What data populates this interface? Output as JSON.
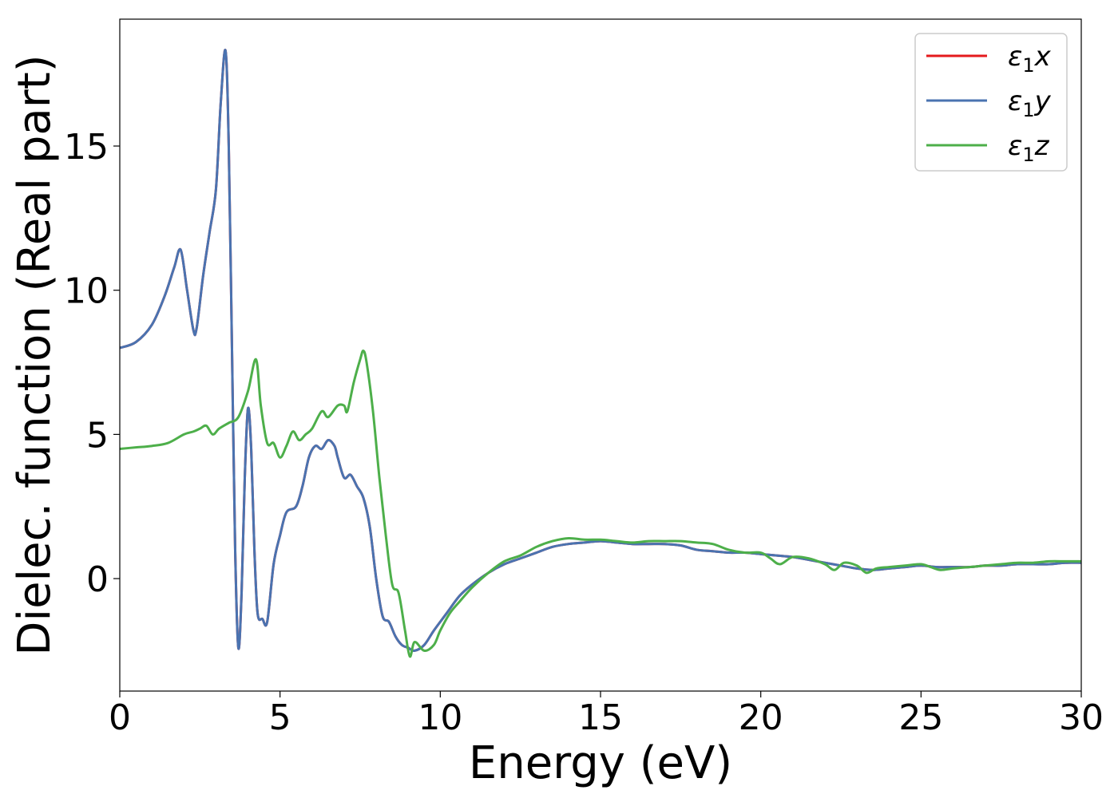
{
  "chart_data": {
    "type": "line",
    "xlabel": "Energy (eV)",
    "ylabel": "Dielec. function (Real part)",
    "xlim": [
      0,
      30
    ],
    "ylim": [
      -3.9,
      19.4
    ],
    "xticks": [
      0,
      5,
      10,
      15,
      20,
      25,
      30
    ],
    "yticks": [
      0,
      5,
      10,
      15
    ],
    "grid": false,
    "legend": {
      "position": "top-right",
      "entries": [
        {
          "main": "ε",
          "sub": "1",
          "tail": "x"
        },
        {
          "main": "ε",
          "sub": "1",
          "tail": "y"
        },
        {
          "main": "ε",
          "sub": "1",
          "tail": "z"
        }
      ]
    },
    "series": [
      {
        "name": "ε1x",
        "color": "#e41a1c",
        "x": [
          0,
          0.5,
          1.0,
          1.4,
          1.7,
          1.9,
          2.1,
          2.3,
          2.4,
          2.6,
          2.8,
          3.0,
          3.15,
          3.3,
          3.4,
          3.5,
          3.6,
          3.7,
          3.8,
          3.9,
          4.0,
          4.1,
          4.2,
          4.3,
          4.45,
          4.6,
          4.8,
          5.0,
          5.2,
          5.5,
          5.7,
          5.9,
          6.1,
          6.3,
          6.5,
          6.7,
          6.8,
          7.0,
          7.2,
          7.4,
          7.6,
          7.8,
          8.0,
          8.2,
          8.4,
          8.6,
          8.8,
          9.0,
          9.2,
          9.5,
          9.8,
          10.2,
          10.6,
          11.0,
          11.5,
          12.0,
          12.5,
          13.0,
          13.5,
          14.0,
          14.5,
          15.0,
          15.5,
          16.0,
          16.5,
          17.0,
          17.5,
          18.0,
          18.5,
          19.0,
          19.5,
          20.0,
          20.5,
          21.0,
          21.5,
          22.0,
          22.5,
          23.0,
          23.5,
          24.0,
          24.5,
          25.0,
          25.5,
          26.0,
          26.5,
          27.0,
          27.5,
          28.0,
          28.5,
          29.0,
          29.5,
          30.0
        ],
        "y": [
          8.0,
          8.2,
          8.8,
          9.8,
          10.8,
          11.4,
          10.0,
          8.6,
          8.7,
          10.5,
          12.0,
          13.5,
          16.5,
          18.3,
          15.0,
          8.0,
          1.0,
          -2.4,
          -0.5,
          3.5,
          5.9,
          4.5,
          1.0,
          -1.2,
          -1.4,
          -1.5,
          0.5,
          1.5,
          2.3,
          2.5,
          3.2,
          4.2,
          4.6,
          4.5,
          4.8,
          4.6,
          4.2,
          3.5,
          3.6,
          3.2,
          2.8,
          1.8,
          0.0,
          -1.3,
          -1.5,
          -2.0,
          -2.3,
          -2.4,
          -2.5,
          -2.3,
          -1.8,
          -1.2,
          -0.6,
          -0.2,
          0.2,
          0.5,
          0.7,
          0.9,
          1.1,
          1.2,
          1.25,
          1.3,
          1.25,
          1.2,
          1.2,
          1.2,
          1.15,
          1.0,
          0.95,
          0.9,
          0.9,
          0.85,
          0.8,
          0.75,
          0.65,
          0.55,
          0.45,
          0.35,
          0.3,
          0.35,
          0.4,
          0.45,
          0.4,
          0.4,
          0.4,
          0.45,
          0.45,
          0.5,
          0.5,
          0.5,
          0.55,
          0.55
        ]
      },
      {
        "name": "ε1y",
        "color": "#4a73b0",
        "x": [
          0,
          0.5,
          1.0,
          1.4,
          1.7,
          1.9,
          2.1,
          2.3,
          2.4,
          2.6,
          2.8,
          3.0,
          3.15,
          3.3,
          3.4,
          3.5,
          3.6,
          3.7,
          3.8,
          3.9,
          4.0,
          4.1,
          4.2,
          4.3,
          4.45,
          4.6,
          4.8,
          5.0,
          5.2,
          5.5,
          5.7,
          5.9,
          6.1,
          6.3,
          6.5,
          6.7,
          6.8,
          7.0,
          7.2,
          7.4,
          7.6,
          7.8,
          8.0,
          8.2,
          8.4,
          8.6,
          8.8,
          9.0,
          9.2,
          9.5,
          9.8,
          10.2,
          10.6,
          11.0,
          11.5,
          12.0,
          12.5,
          13.0,
          13.5,
          14.0,
          14.5,
          15.0,
          15.5,
          16.0,
          16.5,
          17.0,
          17.5,
          18.0,
          18.5,
          19.0,
          19.5,
          20.0,
          20.5,
          21.0,
          21.5,
          22.0,
          22.5,
          23.0,
          23.5,
          24.0,
          24.5,
          25.0,
          25.5,
          26.0,
          26.5,
          27.0,
          27.5,
          28.0,
          28.5,
          29.0,
          29.5,
          30.0
        ],
        "y": [
          8.0,
          8.2,
          8.8,
          9.8,
          10.8,
          11.4,
          10.0,
          8.6,
          8.7,
          10.5,
          12.0,
          13.5,
          16.5,
          18.3,
          15.0,
          8.0,
          1.0,
          -2.4,
          -0.5,
          3.5,
          5.9,
          4.5,
          1.0,
          -1.2,
          -1.4,
          -1.5,
          0.5,
          1.5,
          2.3,
          2.5,
          3.2,
          4.2,
          4.6,
          4.5,
          4.8,
          4.6,
          4.2,
          3.5,
          3.6,
          3.2,
          2.8,
          1.8,
          0.0,
          -1.3,
          -1.5,
          -2.0,
          -2.3,
          -2.4,
          -2.5,
          -2.3,
          -1.8,
          -1.2,
          -0.6,
          -0.2,
          0.2,
          0.5,
          0.7,
          0.9,
          1.1,
          1.2,
          1.25,
          1.3,
          1.25,
          1.2,
          1.2,
          1.2,
          1.15,
          1.0,
          0.95,
          0.9,
          0.9,
          0.85,
          0.8,
          0.75,
          0.65,
          0.55,
          0.45,
          0.35,
          0.3,
          0.35,
          0.4,
          0.45,
          0.4,
          0.4,
          0.4,
          0.45,
          0.45,
          0.5,
          0.5,
          0.5,
          0.55,
          0.55
        ]
      },
      {
        "name": "ε1z",
        "color": "#4daf4a",
        "x": [
          0,
          0.5,
          1.0,
          1.5,
          2.0,
          2.3,
          2.5,
          2.7,
          2.9,
          3.1,
          3.4,
          3.7,
          4.0,
          4.25,
          4.4,
          4.6,
          4.8,
          5.0,
          5.2,
          5.4,
          5.6,
          5.8,
          6.0,
          6.3,
          6.5,
          6.8,
          7.0,
          7.1,
          7.3,
          7.5,
          7.6,
          7.7,
          7.9,
          8.1,
          8.3,
          8.5,
          8.7,
          8.9,
          9.05,
          9.2,
          9.5,
          9.8,
          10.0,
          10.3,
          10.6,
          11.0,
          11.5,
          12.0,
          12.5,
          13.0,
          13.5,
          14.0,
          14.5,
          15.0,
          15.5,
          16.0,
          16.5,
          17.0,
          17.5,
          18.0,
          18.5,
          19.0,
          19.5,
          20.0,
          20.3,
          20.6,
          21.0,
          21.5,
          22.0,
          22.3,
          22.6,
          23.0,
          23.3,
          23.6,
          24.0,
          24.5,
          25.0,
          25.3,
          25.6,
          26.0,
          26.5,
          27.0,
          27.5,
          28.0,
          28.5,
          29.0,
          29.5,
          30.0
        ],
        "y": [
          4.5,
          4.55,
          4.6,
          4.7,
          5.0,
          5.1,
          5.2,
          5.3,
          5.0,
          5.2,
          5.4,
          5.6,
          6.5,
          7.6,
          6.0,
          4.7,
          4.7,
          4.2,
          4.6,
          5.1,
          4.8,
          5.0,
          5.2,
          5.8,
          5.6,
          6.0,
          6.0,
          5.8,
          6.8,
          7.6,
          7.9,
          7.5,
          5.8,
          3.5,
          1.5,
          -0.2,
          -0.5,
          -1.8,
          -2.7,
          -2.2,
          -2.5,
          -2.3,
          -1.8,
          -1.2,
          -0.8,
          -0.3,
          0.2,
          0.6,
          0.8,
          1.1,
          1.3,
          1.4,
          1.35,
          1.35,
          1.3,
          1.25,
          1.3,
          1.3,
          1.3,
          1.25,
          1.2,
          1.0,
          0.9,
          0.9,
          0.7,
          0.5,
          0.75,
          0.7,
          0.5,
          0.3,
          0.55,
          0.45,
          0.2,
          0.35,
          0.4,
          0.45,
          0.5,
          0.4,
          0.3,
          0.35,
          0.4,
          0.45,
          0.5,
          0.55,
          0.55,
          0.6,
          0.6,
          0.6
        ]
      }
    ]
  }
}
